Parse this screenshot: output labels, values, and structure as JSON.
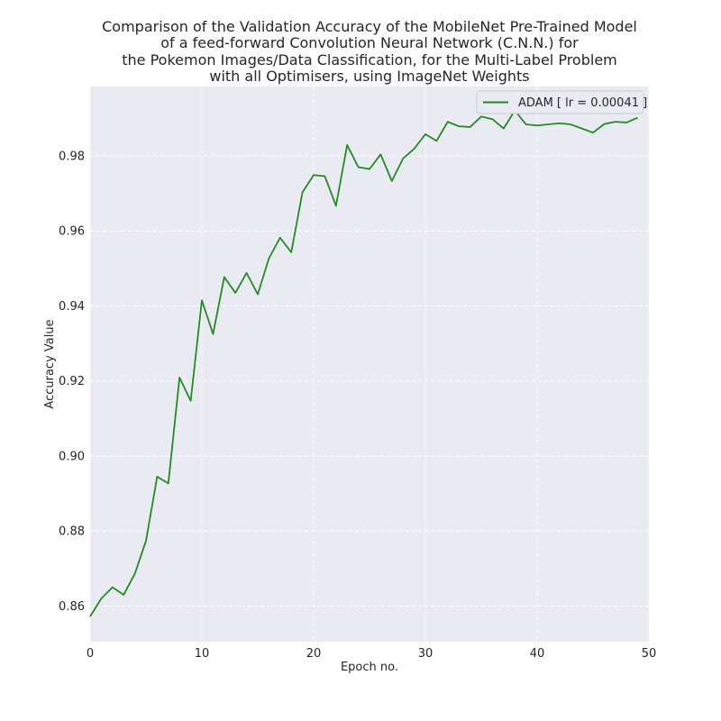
{
  "chart_data": {
    "type": "line",
    "title_lines": [
      "Comparison of the Validation Accuracy of the MobileNet Pre-Trained Model",
      "of a feed-forward Convolution Neural Network (C.N.N.) for",
      "the Pokemon Images/Data Classification, for the Multi-Label Problem",
      "with all Optimisers, using ImageNet Weights"
    ],
    "xlabel": "Epoch no.",
    "ylabel": "Accuracy Value",
    "xlim": [
      0,
      50
    ],
    "ylim": [
      0.8505,
      0.9985
    ],
    "xticks": [
      0,
      10,
      20,
      30,
      40,
      50
    ],
    "xtick_labels": [
      "0",
      "10",
      "20",
      "30",
      "40",
      "50"
    ],
    "yticks": [
      0.86,
      0.88,
      0.9,
      0.92,
      0.94,
      0.96,
      0.98
    ],
    "ytick_labels": [
      "0.86",
      "0.88",
      "0.90",
      "0.92",
      "0.94",
      "0.96",
      "0.98"
    ],
    "grid": true,
    "legend_position": "top-right",
    "series": [
      {
        "name": "ADAM [ lr = 0.00041 ]",
        "color": "#228b22",
        "x": [
          0,
          1,
          2,
          3,
          4,
          5,
          6,
          7,
          8,
          9,
          10,
          11,
          12,
          13,
          14,
          15,
          16,
          17,
          18,
          19,
          20,
          21,
          22,
          23,
          24,
          25,
          26,
          27,
          28,
          29,
          30,
          31,
          32,
          33,
          34,
          35,
          36,
          37,
          38,
          39,
          40,
          41,
          42,
          43,
          44,
          45,
          46,
          47,
          48,
          49
        ],
        "y": [
          0.8572,
          0.862,
          0.865,
          0.863,
          0.8686,
          0.8774,
          0.8945,
          0.8927,
          0.9209,
          0.9147,
          0.9415,
          0.9325,
          0.9477,
          0.9435,
          0.9488,
          0.9431,
          0.9527,
          0.9582,
          0.9543,
          0.9703,
          0.9749,
          0.9746,
          0.9667,
          0.9829,
          0.977,
          0.9765,
          0.9804,
          0.9733,
          0.9793,
          0.9819,
          0.9858,
          0.984,
          0.9891,
          0.9879,
          0.9877,
          0.9905,
          0.9898,
          0.9873,
          0.9921,
          0.9884,
          0.9881,
          0.9884,
          0.9887,
          0.9884,
          0.9873,
          0.9862,
          0.9885,
          0.9891,
          0.9889,
          0.9902
        ]
      }
    ]
  },
  "colors": {
    "plot_background": "#eaeaf2",
    "grid": "#ffffff",
    "text": "#262626"
  }
}
